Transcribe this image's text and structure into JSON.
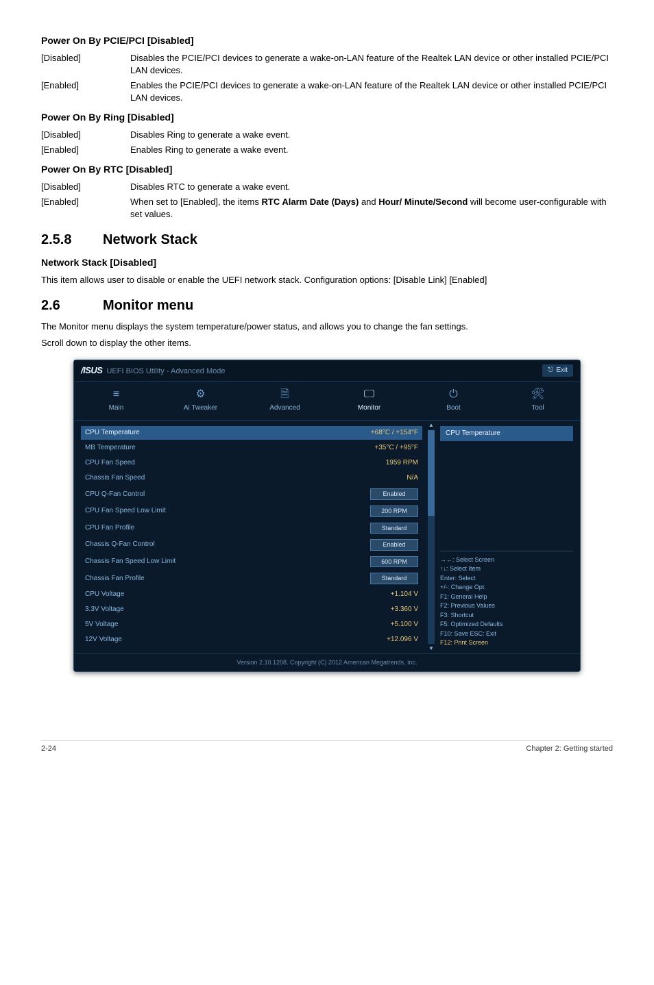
{
  "sections": {
    "pcie": {
      "title": "Power On By PCIE/PCI [Disabled]",
      "opts": [
        {
          "k": "[Disabled]",
          "d": "Disables the PCIE/PCI devices to generate a wake-on-LAN feature of the Realtek LAN device or other installed PCIE/PCI LAN devices."
        },
        {
          "k": "[Enabled]",
          "d": "Enables the PCIE/PCI devices to generate a wake-on-LAN feature of the Realtek LAN device or other installed PCIE/PCI LAN devices."
        }
      ]
    },
    "ring": {
      "title": "Power On By Ring [Disabled]",
      "opts": [
        {
          "k": "[Disabled]",
          "d": "Disables Ring to generate a wake event."
        },
        {
          "k": "[Enabled]",
          "d": "Enables Ring to generate a wake event."
        }
      ]
    },
    "rtc": {
      "title": "Power On By RTC [Disabled]",
      "opts": [
        {
          "k": "[Disabled]",
          "d": "Disables RTC to generate a wake event."
        },
        {
          "k": "[Enabled]",
          "d_pre": "When set to [Enabled], the items ",
          "d_b1": "RTC Alarm Date (Days)",
          "d_mid": " and ",
          "d_b2": "Hour/ Minute/Second",
          "d_post": " will become user-configurable with set values."
        }
      ]
    },
    "s258": {
      "num": "2.5.8",
      "title": "Network Stack",
      "sub_title": "Network Stack [Disabled]",
      "sub_desc": "This item allows user to disable or enable the UEFI network stack. Configuration options: [Disable Link] [Enabled]"
    },
    "s26": {
      "num": "2.6",
      "title": "Monitor menu",
      "p1": "The Monitor menu displays the system temperature/power status, and allows you to change the fan settings.",
      "p2": "Scroll down to display the other items."
    }
  },
  "bios": {
    "logo_brand": "/ISUS",
    "logo_sub": "UEFI BIOS Utility - Advanced Mode",
    "exit_label": "Exit",
    "tabs": [
      {
        "icon": "≡",
        "label": "Main"
      },
      {
        "icon": "⚙",
        "label": "Ai Tweaker"
      },
      {
        "icon": "🗎",
        "label": "Advanced"
      },
      {
        "icon": "🖵",
        "label": "Monitor",
        "active": true
      },
      {
        "icon": "⏻",
        "label": "Boot"
      },
      {
        "icon": "🛠",
        "label": "Tool"
      }
    ],
    "right_header": "CPU Temperature",
    "rows": [
      {
        "label": "CPU Temperature",
        "value": "+68°C / +154°F",
        "hl": true,
        "yellow": true
      },
      {
        "label": "MB Temperature",
        "value": "+35°C / +95°F",
        "yellow": true
      },
      {
        "label": "CPU Fan Speed",
        "value": "1959 RPM",
        "yellow": true
      },
      {
        "label": "Chassis Fan Speed",
        "value": "N/A",
        "yellow": true
      },
      {
        "label": "CPU Q-Fan Control",
        "value": "Enabled",
        "box": true
      },
      {
        "label": "CPU Fan Speed Low Limit",
        "value": "200 RPM",
        "box": true
      },
      {
        "label": "CPU Fan Profile",
        "value": "Standard",
        "box": true,
        "triangle": true
      },
      {
        "label": "Chassis Q-Fan Control",
        "value": "Enabled",
        "box": true
      },
      {
        "label": "Chassis Fan Speed Low Limit",
        "value": "600 RPM",
        "box": true
      },
      {
        "label": "Chassis Fan Profile",
        "value": "Standard",
        "box": true
      },
      {
        "label": "CPU Voltage",
        "value": "+1.104 V",
        "yellow": true
      },
      {
        "label": "3.3V Voltage",
        "value": "+3.360 V",
        "yellow": true
      },
      {
        "label": "5V Voltage",
        "value": "+5.100 V",
        "yellow": true
      },
      {
        "label": "12V Voltage",
        "value": "+12.096 V",
        "yellow": true
      }
    ],
    "help": [
      {
        "k": "→←:",
        "v": "Select Screen"
      },
      {
        "k": "↑↓:",
        "v": "Select Item"
      },
      {
        "k": "Enter:",
        "v": "Select"
      },
      {
        "k": "+/-:",
        "v": "Change Opt."
      },
      {
        "k": "F1:",
        "v": "General Help"
      },
      {
        "k": "F2:",
        "v": "Previous Values"
      },
      {
        "k": "F3:",
        "v": "Shortcut"
      },
      {
        "k": "F5:",
        "v": "Optimized Defaults"
      },
      {
        "k": "F10:",
        "v": "Save  ESC: Exit"
      },
      {
        "k": "F12:",
        "v": "Print Screen",
        "yellow": true
      }
    ],
    "footer": "Version 2.10.1208. Copyright (C) 2012 American Megatrends, Inc."
  },
  "pagefooter": {
    "left": "2-24",
    "right": "Chapter 2: Getting started"
  }
}
